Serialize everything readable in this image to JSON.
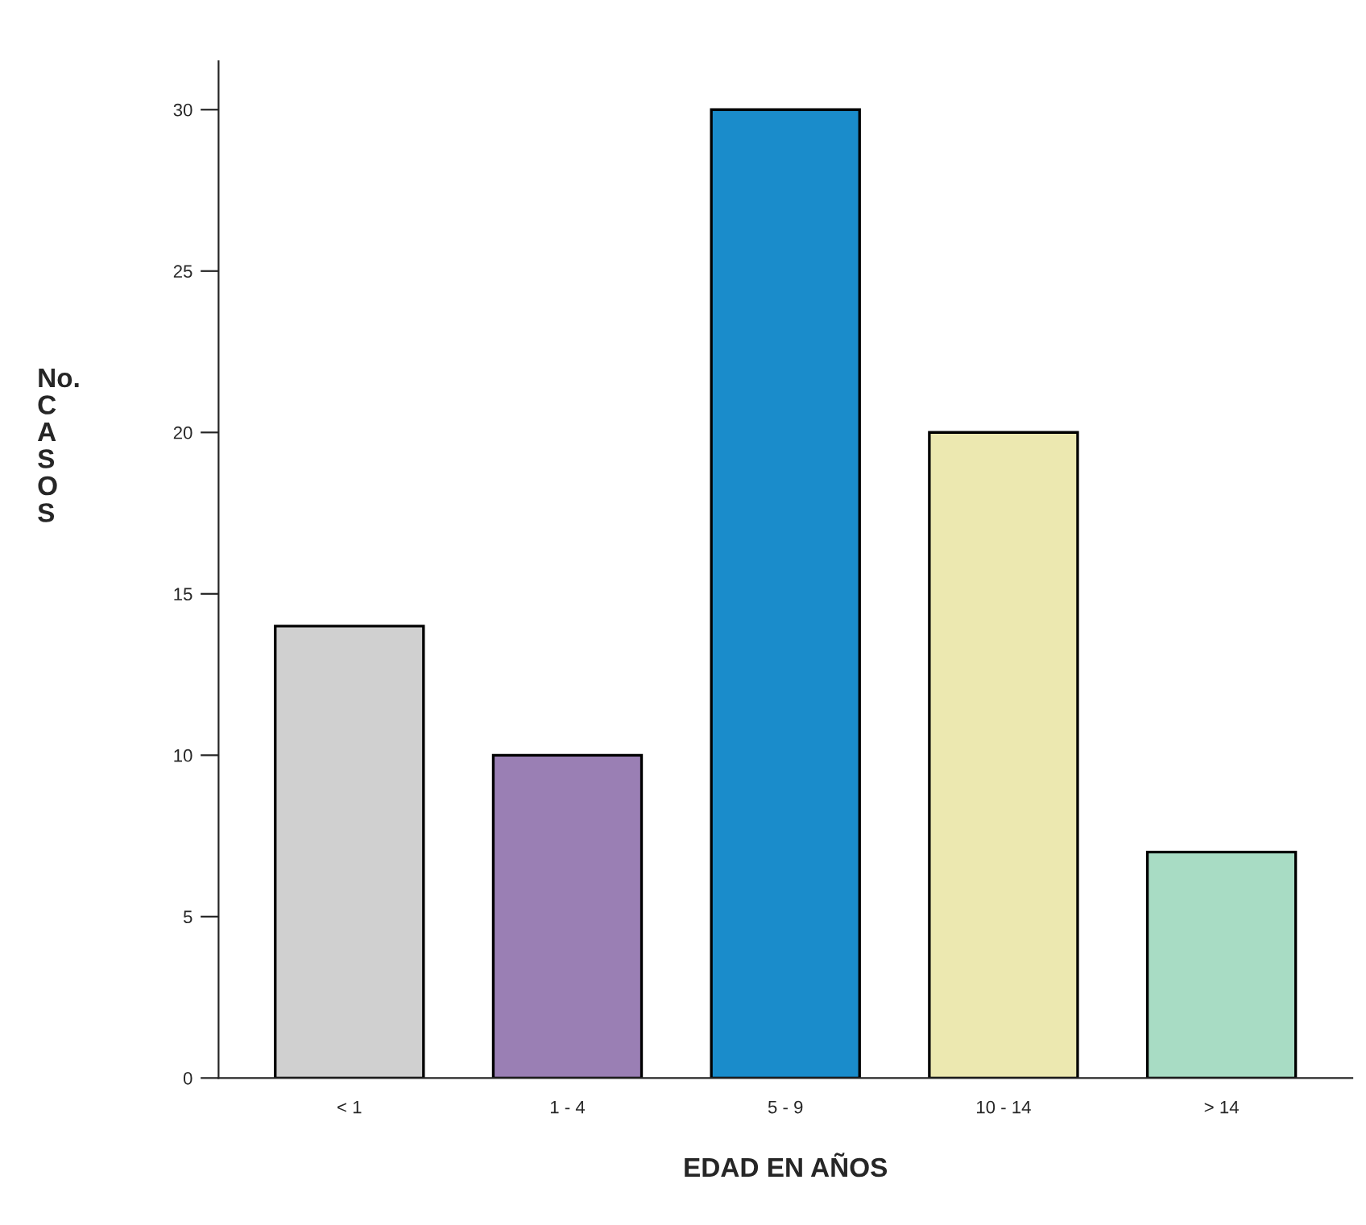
{
  "chart_data": {
    "type": "bar",
    "xlabel": "EDAD EN AÑOS",
    "ylabel": "No.\nC\nA\nS\nO\nS",
    "categories": [
      "< 1",
      "1 - 4",
      "5 - 9",
      "10 - 14",
      "> 14"
    ],
    "values": [
      14,
      10,
      30,
      20,
      7
    ],
    "colors": [
      "#d0d0d0",
      "#9a7fb4",
      "#1a8ccb",
      "#ece8b0",
      "#a8dcc4"
    ],
    "ylim": [
      0,
      31.5
    ],
    "yticks": [
      0,
      5,
      10,
      15,
      20,
      25,
      30
    ],
    "grid": false
  }
}
